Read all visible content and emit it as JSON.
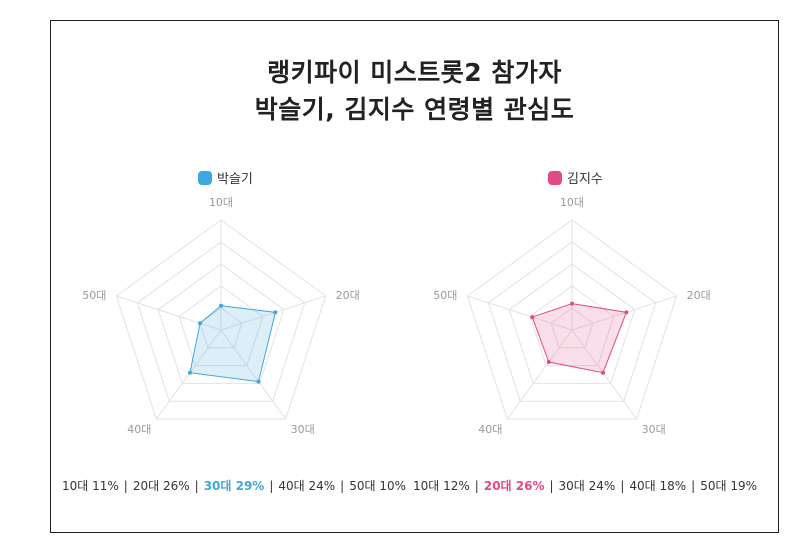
{
  "title": {
    "line1": "랭키파이 미스트롯2 참가자",
    "line2": "박슬기, 김지수 연령별 관심도"
  },
  "chart_data": [
    {
      "type": "radar",
      "series": [
        {
          "name": "박슬기",
          "color": "#3ea8dc"
        }
      ],
      "axes": [
        "10대",
        "20대",
        "30대",
        "40대",
        "50대"
      ],
      "values": [
        11,
        26,
        29,
        24,
        10
      ],
      "rmax": 50,
      "highlight_index": 2,
      "highlight_color": "#3ea8dc",
      "summary": [
        "10대 11%",
        "20대 26%",
        "30대 29%",
        "40대 24%",
        "50대 10%"
      ]
    },
    {
      "type": "radar",
      "series": [
        {
          "name": "김지수",
          "color": "#e24a86"
        }
      ],
      "axes": [
        "10대",
        "20대",
        "30대",
        "40대",
        "50대"
      ],
      "values": [
        12,
        26,
        24,
        18,
        19
      ],
      "rmax": 50,
      "highlight_index": 1,
      "highlight_color": "#e24a86",
      "summary": [
        "10대 12%",
        "20대 26%",
        "30대 24%",
        "40대 18%",
        "50대 19%"
      ]
    }
  ]
}
